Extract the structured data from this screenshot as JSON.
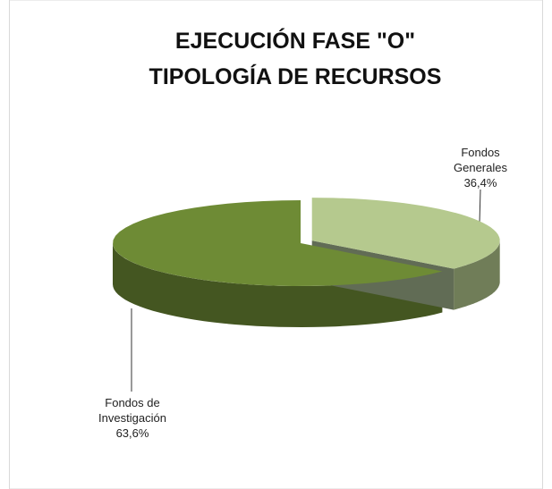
{
  "chart_data": {
    "type": "pie3d",
    "title": [
      "EJECUCIÓN FASE \"O\"",
      "TIPOLOGÍA DE RECURSOS"
    ],
    "categories": [
      "Fondos Generales",
      "Fondos de Investigación"
    ],
    "values": [
      36.4,
      63.6
    ],
    "value_labels": [
      "36,4%",
      "63,6%"
    ],
    "colors": [
      "#b5c98e",
      "#6e8b35"
    ]
  }
}
